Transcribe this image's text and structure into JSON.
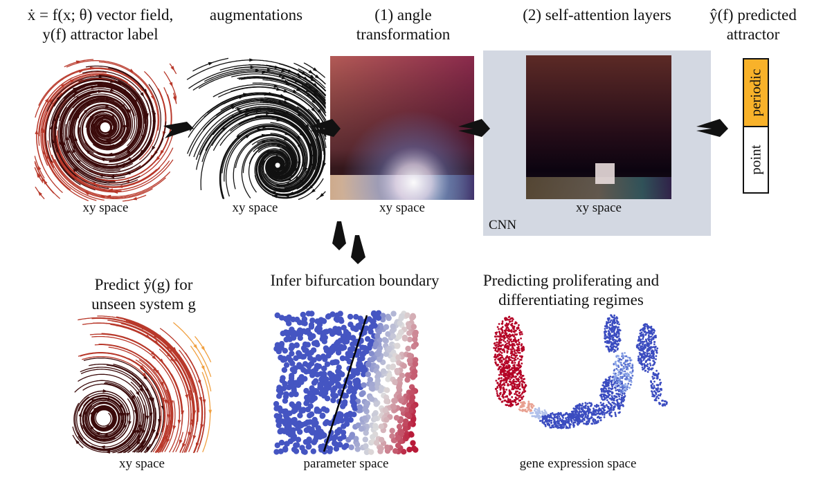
{
  "headers": {
    "vector_field_line1": "ẋ = f(x; θ) vector field,",
    "vector_field_line2": "y(f) attractor label",
    "augmentations": "augmentations",
    "angle_line1": "(1) angle",
    "angle_line2": "transformation",
    "self_attention": "(2) self-attention layers",
    "predicted_line1": "ŷ(f) predicted",
    "predicted_line2": "attractor"
  },
  "captions": {
    "xy1": "xy space",
    "xy2": "xy space",
    "xy3": "xy space",
    "xy4": "xy space",
    "xy5": "xy space",
    "parameter": "parameter space",
    "gene": "gene expression space"
  },
  "cnn_label": "CNN",
  "attractor_labels": {
    "periodic": "periodic",
    "point": "point"
  },
  "tasks": {
    "predict_line1": "Predict ŷ(g) for",
    "predict_line2": "unseen system g",
    "bifurcation": "Infer bifurcation boundary",
    "regimes_line1": "Predicting proliferating and",
    "regimes_line2": "differentiating regimes"
  },
  "colors": {
    "cnn_bg": "#d3d8e2",
    "periodic": "#f8b22a",
    "stream_dark": "#3a0a0a",
    "stream_mid": "#b8382a",
    "stream_light": "#f0a040",
    "scatter_blue": "#3b4cc0",
    "scatter_red": "#b40426"
  }
}
